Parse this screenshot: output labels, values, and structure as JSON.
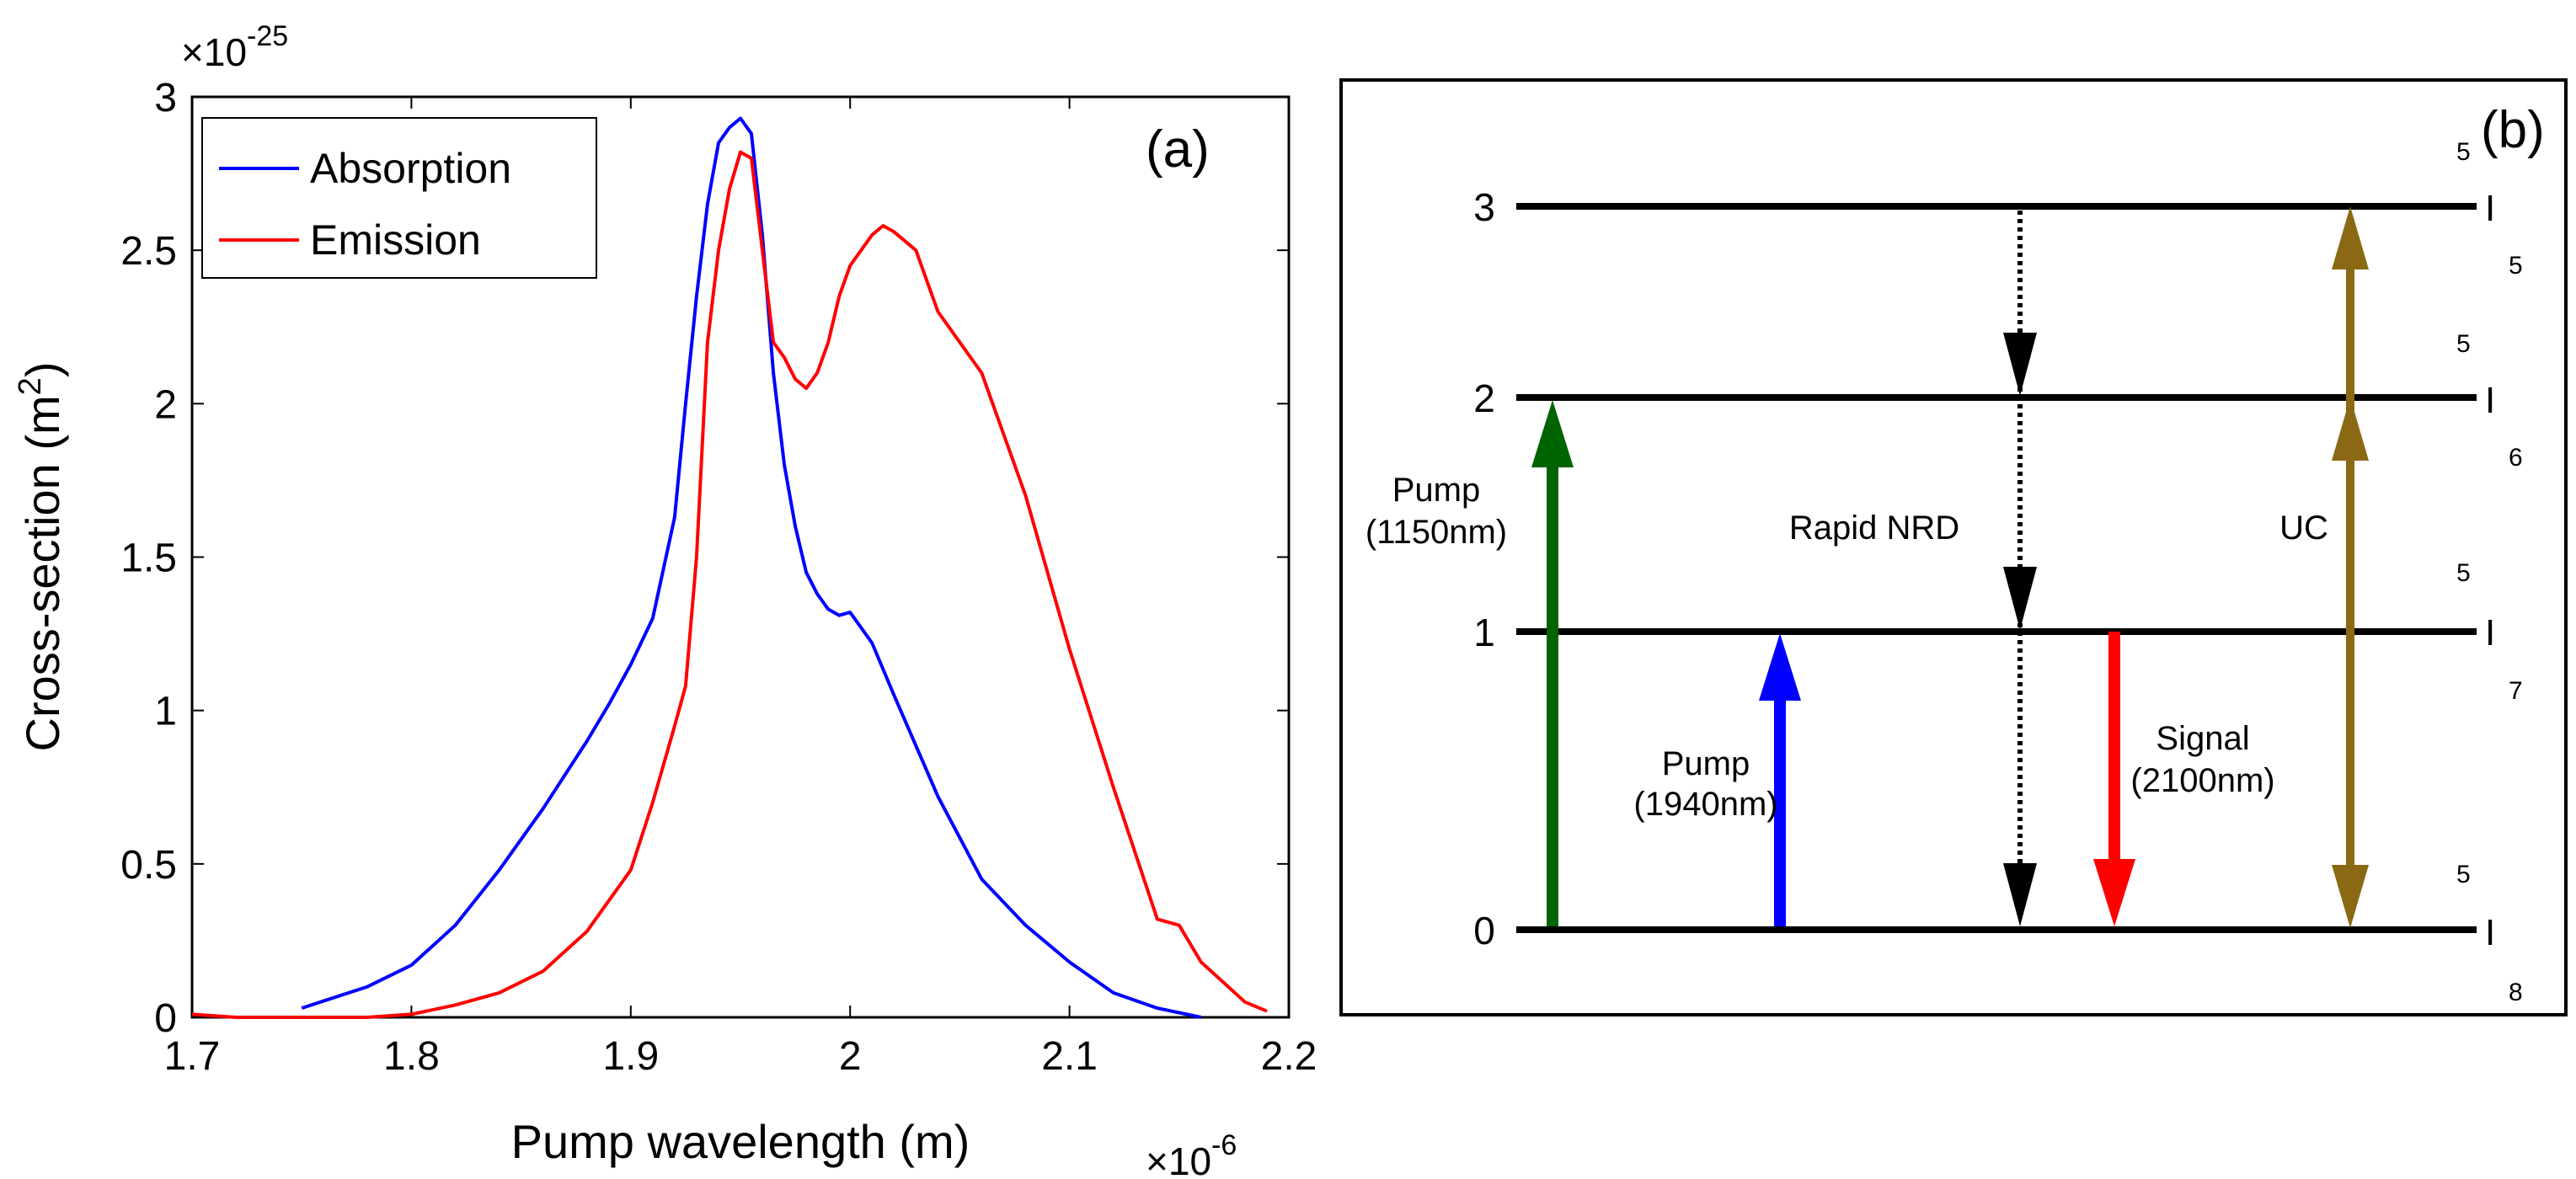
{
  "chart_data": {
    "type": "line",
    "panel_label": "(a)",
    "xlabel": "Pump wavelength (m)",
    "ylabel": "Cross-section (m",
    "ylabel_sup": "2",
    "ylabel_close": ")",
    "x_multiplier": "×10",
    "x_multiplier_exp": "-6",
    "y_multiplier": "×10",
    "y_multiplier_exp": "-25",
    "xlim": [
      1.7,
      2.2
    ],
    "ylim": [
      0,
      3
    ],
    "x_ticks": [
      1.7,
      1.8,
      1.9,
      2.0,
      2.1,
      2.2
    ],
    "x_tick_labels": [
      "1.7",
      "1.8",
      "1.9",
      "2",
      "2.1",
      "2.2"
    ],
    "y_ticks": [
      0,
      0.5,
      1,
      1.5,
      2,
      2.5,
      3
    ],
    "y_tick_labels": [
      "0",
      "0.5",
      "1",
      "1.5",
      "2",
      "2.5",
      "3"
    ],
    "legend_position": "top-left",
    "series": [
      {
        "name": "Absorption",
        "color": "#0000ff",
        "x": [
          1.75,
          1.78,
          1.8,
          1.82,
          1.84,
          1.86,
          1.88,
          1.89,
          1.9,
          1.91,
          1.92,
          1.925,
          1.93,
          1.935,
          1.94,
          1.945,
          1.95,
          1.955,
          1.96,
          1.965,
          1.97,
          1.975,
          1.98,
          1.985,
          1.99,
          1.995,
          2.0,
          2.01,
          2.02,
          2.04,
          2.06,
          2.08,
          2.1,
          2.12,
          2.14,
          2.16
        ],
        "y": [
          0.03,
          0.1,
          0.17,
          0.3,
          0.48,
          0.68,
          0.9,
          1.02,
          1.15,
          1.3,
          1.63,
          2.0,
          2.35,
          2.65,
          2.85,
          2.9,
          2.93,
          2.88,
          2.55,
          2.1,
          1.8,
          1.6,
          1.45,
          1.38,
          1.33,
          1.31,
          1.32,
          1.22,
          1.05,
          0.72,
          0.45,
          0.3,
          0.18,
          0.08,
          0.03,
          0.0
        ]
      },
      {
        "name": "Emission",
        "color": "#ff0000",
        "x": [
          1.7,
          1.72,
          1.74,
          1.76,
          1.78,
          1.8,
          1.82,
          1.84,
          1.86,
          1.88,
          1.9,
          1.91,
          1.92,
          1.925,
          1.93,
          1.935,
          1.94,
          1.945,
          1.95,
          1.955,
          1.96,
          1.965,
          1.97,
          1.975,
          1.98,
          1.985,
          1.99,
          1.995,
          2.0,
          2.01,
          2.015,
          2.02,
          2.03,
          2.04,
          2.05,
          2.06,
          2.08,
          2.1,
          2.12,
          2.14,
          2.15,
          2.16,
          2.18,
          2.19
        ],
        "y": [
          0.01,
          0.0,
          0.0,
          0.0,
          0.0,
          0.01,
          0.04,
          0.08,
          0.15,
          0.28,
          0.48,
          0.7,
          0.95,
          1.08,
          1.5,
          2.2,
          2.5,
          2.7,
          2.82,
          2.8,
          2.5,
          2.2,
          2.15,
          2.08,
          2.05,
          2.1,
          2.2,
          2.35,
          2.45,
          2.55,
          2.58,
          2.56,
          2.5,
          2.3,
          2.2,
          2.1,
          1.7,
          1.2,
          0.75,
          0.32,
          0.3,
          0.18,
          0.05,
          0.02
        ]
      }
    ]
  },
  "diagram": {
    "panel_label": "(b)",
    "levels": [
      {
        "label": "3",
        "term_sup": "5",
        "term": "I",
        "term_sub": "5"
      },
      {
        "label": "2",
        "term_sup": "5",
        "term": "I",
        "term_sub": "6"
      },
      {
        "label": "1",
        "term_sup": "5",
        "term": "I",
        "term_sub": "7"
      },
      {
        "label": "0",
        "term_sup": "5",
        "term": "I",
        "term_sub": "8"
      }
    ],
    "pump1150": {
      "line1": "Pump",
      "line2": "(1150nm)",
      "color": "#006400"
    },
    "pump1940": {
      "line1": "Pump",
      "line2": "(1940nm)",
      "color": "#0000ff"
    },
    "nrd": {
      "label": "Rapid NRD",
      "color": "#000000"
    },
    "signal": {
      "line1": "Signal",
      "line2": "(2100nm)",
      "color": "#ff0000"
    },
    "uc": {
      "label": "UC",
      "color": "#8b6914"
    }
  }
}
